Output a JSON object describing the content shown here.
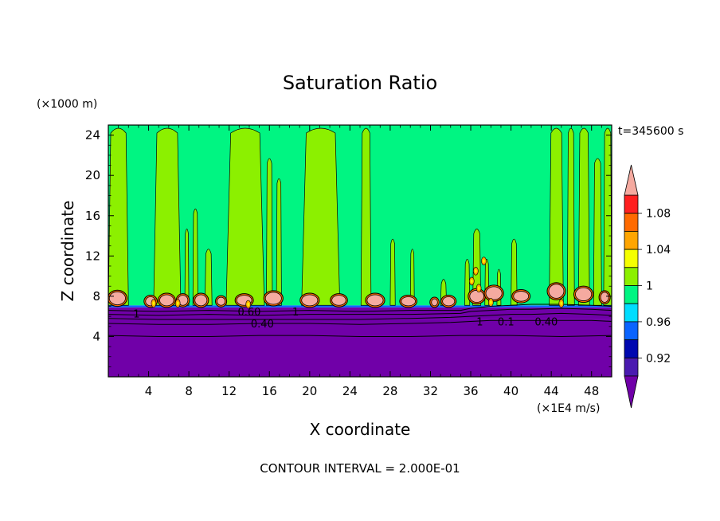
{
  "chart_data": {
    "type": "heatmap",
    "title": "Saturation Ratio",
    "xlabel": "X coordinate",
    "ylabel": "Z coordinate",
    "x_unit": "(×1E4 m/s)",
    "y_unit": "(×1000 m)",
    "time_label": "t=345600 s",
    "footer": "CONTOUR INTERVAL = 2.000E-01",
    "xlim": [
      0,
      50
    ],
    "ylim": [
      0,
      25
    ],
    "x_ticks": [
      4,
      8,
      12,
      16,
      20,
      24,
      28,
      32,
      36,
      40,
      44,
      48
    ],
    "y_ticks": [
      4,
      8,
      12,
      16,
      20,
      24
    ],
    "contour_labels": [
      {
        "text": "0.60",
        "x": 14,
        "y": 6.5
      },
      {
        "text": "0.40",
        "x": 15.3,
        "y": 5.3
      },
      {
        "text": "0.40",
        "x": 43.5,
        "y": 5.5
      },
      {
        "text": "1",
        "x": 2.8,
        "y": 6.3
      },
      {
        "text": "1",
        "x": 18.6,
        "y": 6.5
      },
      {
        "text": "1",
        "x": 36.9,
        "y": 5.5
      },
      {
        "text": "0.1",
        "x": 39.5,
        "y": 5.5
      }
    ],
    "colorbar": {
      "labels": [
        "1.08",
        "1.04",
        "1",
        "0.96",
        "0.92"
      ],
      "levels": [
        {
          "lo": null,
          "hi": 0.9,
          "color": "#7000a8"
        },
        {
          "lo": 0.9,
          "hi": 0.92,
          "color": "#4a1ab0"
        },
        {
          "lo": 0.92,
          "hi": 0.94,
          "color": "#0008b0"
        },
        {
          "lo": 0.94,
          "hi": 0.96,
          "color": "#0a64ff"
        },
        {
          "lo": 0.96,
          "hi": 0.98,
          "color": "#00ddff"
        },
        {
          "lo": 0.98,
          "hi": 1.0,
          "color": "#00f582"
        },
        {
          "lo": 1.0,
          "hi": 1.02,
          "color": "#8cf000"
        },
        {
          "lo": 1.02,
          "hi": 1.04,
          "color": "#f5ff00"
        },
        {
          "lo": 1.04,
          "hi": 1.06,
          "color": "#ffa500"
        },
        {
          "lo": 1.06,
          "hi": 1.08,
          "color": "#ff6a00"
        },
        {
          "lo": 1.08,
          "hi": 1.1,
          "color": "#ff2020"
        },
        {
          "lo": 1.1,
          "hi": null,
          "color": "#f5aaa0"
        }
      ]
    },
    "base_layers": [
      {
        "z0": 0,
        "z1": 5.7,
        "color": "#7000a8"
      },
      {
        "z0": 5.7,
        "z1": 6.9,
        "color": "#7000a8"
      },
      {
        "z0": 6.9,
        "z1": 7.1,
        "color": "#0a64ff"
      },
      {
        "z0": 7.1,
        "z1": 25,
        "color": "#00f582"
      }
    ],
    "supersat_columns": [
      {
        "x0": 0.0,
        "x1": 2.0,
        "top": 25
      },
      {
        "x0": 4.5,
        "x1": 7.2,
        "top": 25
      },
      {
        "x0": 7.6,
        "x1": 8.0,
        "top": 15
      },
      {
        "x0": 8.4,
        "x1": 8.9,
        "top": 17
      },
      {
        "x0": 9.6,
        "x1": 10.3,
        "top": 13
      },
      {
        "x0": 11.7,
        "x1": 15.5,
        "top": 25
      },
      {
        "x0": 15.7,
        "x1": 16.3,
        "top": 22
      },
      {
        "x0": 16.7,
        "x1": 17.2,
        "top": 20
      },
      {
        "x0": 19.2,
        "x1": 23.0,
        "top": 25
      },
      {
        "x0": 25.1,
        "x1": 26.1,
        "top": 25
      },
      {
        "x0": 28.0,
        "x1": 28.5,
        "top": 14
      },
      {
        "x0": 30.0,
        "x1": 30.4,
        "top": 13
      },
      {
        "x0": 33.0,
        "x1": 33.6,
        "top": 10
      },
      {
        "x0": 35.4,
        "x1": 35.9,
        "top": 12
      },
      {
        "x0": 36.2,
        "x1": 37.0,
        "top": 15
      },
      {
        "x0": 37.4,
        "x1": 37.8,
        "top": 12
      },
      {
        "x0": 38.6,
        "x1": 39.0,
        "top": 11
      },
      {
        "x0": 40.0,
        "x1": 40.6,
        "top": 14
      },
      {
        "x0": 43.8,
        "x1": 45.2,
        "top": 25
      },
      {
        "x0": 45.6,
        "x1": 46.3,
        "top": 25
      },
      {
        "x0": 46.7,
        "x1": 47.8,
        "top": 25
      },
      {
        "x0": 48.2,
        "x1": 49.0,
        "top": 22
      },
      {
        "x0": 49.2,
        "x1": 50.0,
        "top": 25
      }
    ],
    "pink_blobs": [
      {
        "x": 0.9,
        "w": 1.6,
        "z": 7.8,
        "h": 1.3
      },
      {
        "x": 4.2,
        "w": 1.0,
        "z": 7.5,
        "h": 0.9
      },
      {
        "x": 5.8,
        "w": 1.4,
        "z": 7.6,
        "h": 1.1
      },
      {
        "x": 7.4,
        "w": 1.0,
        "z": 7.6,
        "h": 1.0
      },
      {
        "x": 9.2,
        "w": 1.2,
        "z": 7.6,
        "h": 1.1
      },
      {
        "x": 11.2,
        "w": 0.8,
        "z": 7.5,
        "h": 0.8
      },
      {
        "x": 13.5,
        "w": 1.5,
        "z": 7.6,
        "h": 1.0
      },
      {
        "x": 16.4,
        "w": 1.6,
        "z": 7.8,
        "h": 1.2
      },
      {
        "x": 20.0,
        "w": 1.6,
        "z": 7.6,
        "h": 1.1
      },
      {
        "x": 22.9,
        "w": 1.4,
        "z": 7.6,
        "h": 1.0
      },
      {
        "x": 26.5,
        "w": 1.6,
        "z": 7.6,
        "h": 1.1
      },
      {
        "x": 29.8,
        "w": 1.4,
        "z": 7.5,
        "h": 0.9
      },
      {
        "x": 32.4,
        "w": 0.6,
        "z": 7.4,
        "h": 0.7
      },
      {
        "x": 33.8,
        "w": 1.2,
        "z": 7.5,
        "h": 0.9
      },
      {
        "x": 36.6,
        "w": 1.4,
        "z": 8.0,
        "h": 1.2
      },
      {
        "x": 38.3,
        "w": 1.6,
        "z": 8.3,
        "h": 1.3
      },
      {
        "x": 41.0,
        "w": 1.5,
        "z": 8.0,
        "h": 1.0
      },
      {
        "x": 44.5,
        "w": 1.5,
        "z": 8.5,
        "h": 1.4
      },
      {
        "x": 47.2,
        "w": 1.6,
        "z": 8.2,
        "h": 1.3
      },
      {
        "x": 49.3,
        "w": 0.8,
        "z": 7.9,
        "h": 1.0
      }
    ],
    "orange_spots": [
      {
        "x": 4.5,
        "z": 7.3
      },
      {
        "x": 6.9,
        "z": 7.3
      },
      {
        "x": 13.9,
        "z": 7.2
      },
      {
        "x": 36.1,
        "z": 9.5
      },
      {
        "x": 36.5,
        "z": 10.5
      },
      {
        "x": 36.8,
        "z": 8.8
      },
      {
        "x": 37.3,
        "z": 11.5
      },
      {
        "x": 38.0,
        "z": 7.4
      },
      {
        "x": 45.0,
        "z": 7.3
      }
    ],
    "contour_lines": [
      {
        "x": [
          0,
          5,
          10,
          15,
          20,
          25,
          30,
          35,
          36,
          38,
          40,
          42,
          45,
          48,
          50
        ],
        "z": [
          6.6,
          6.5,
          6.6,
          6.5,
          6.6,
          6.5,
          6.6,
          6.6,
          6.8,
          7.0,
          7.1,
          7.2,
          7.2,
          7.1,
          7.0
        ]
      },
      {
        "x": [
          0,
          5,
          10,
          15,
          20,
          25,
          30,
          35,
          36,
          38,
          40,
          42,
          45,
          48,
          50
        ],
        "z": [
          6.2,
          6.1,
          6.2,
          6.1,
          6.2,
          6.2,
          6.2,
          6.3,
          6.5,
          6.6,
          6.7,
          6.7,
          6.8,
          6.7,
          6.6
        ]
      },
      {
        "x": [
          0,
          5,
          10,
          15,
          20,
          25,
          30,
          34,
          36,
          38,
          40,
          42,
          45,
          48,
          50
        ],
        "z": [
          5.8,
          5.7,
          5.7,
          5.7,
          5.7,
          5.7,
          5.8,
          5.9,
          6.0,
          6.1,
          6.2,
          6.2,
          6.3,
          6.2,
          6.1
        ]
      },
      {
        "x": [
          0,
          5,
          10,
          15,
          20,
          25,
          30,
          34,
          36,
          38,
          40,
          42,
          45,
          48,
          50
        ],
        "z": [
          5.3,
          5.2,
          5.2,
          5.3,
          5.3,
          5.2,
          5.3,
          5.4,
          5.5,
          5.6,
          5.6,
          5.6,
          5.6,
          5.6,
          5.5
        ]
      },
      {
        "x": [
          0,
          5,
          10,
          15,
          20,
          25,
          30,
          35,
          40,
          45,
          50
        ],
        "z": [
          4.1,
          4.0,
          4.0,
          4.1,
          4.1,
          4.0,
          4.0,
          4.1,
          4.1,
          4.0,
          4.1
        ]
      }
    ]
  }
}
